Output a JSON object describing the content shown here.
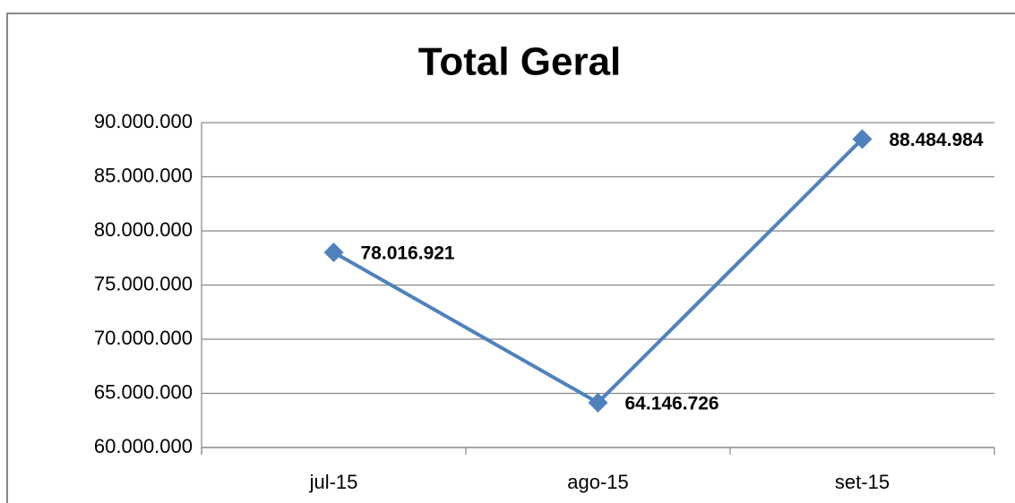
{
  "chart_data": {
    "type": "line",
    "title": "Total Geral",
    "categories": [
      "jul-15",
      "ago-15",
      "set-15"
    ],
    "series": [
      {
        "name": "Total Geral",
        "color": "#4f81bd",
        "values": [
          78016921,
          64146726,
          88484984
        ],
        "value_labels": [
          "78.016.921",
          "64.146.726",
          "88.484.984"
        ]
      }
    ],
    "ylim": [
      60000000,
      90000000
    ],
    "yticks": [
      {
        "value": 60000000,
        "label": "60.000.000"
      },
      {
        "value": 65000000,
        "label": "65.000.000"
      },
      {
        "value": 70000000,
        "label": "70.000.000"
      },
      {
        "value": 75000000,
        "label": "75.000.000"
      },
      {
        "value": 80000000,
        "label": "80.000.000"
      },
      {
        "value": 85000000,
        "label": "85.000.000"
      },
      {
        "value": 90000000,
        "label": "90.000.000"
      }
    ],
    "grid": true
  }
}
